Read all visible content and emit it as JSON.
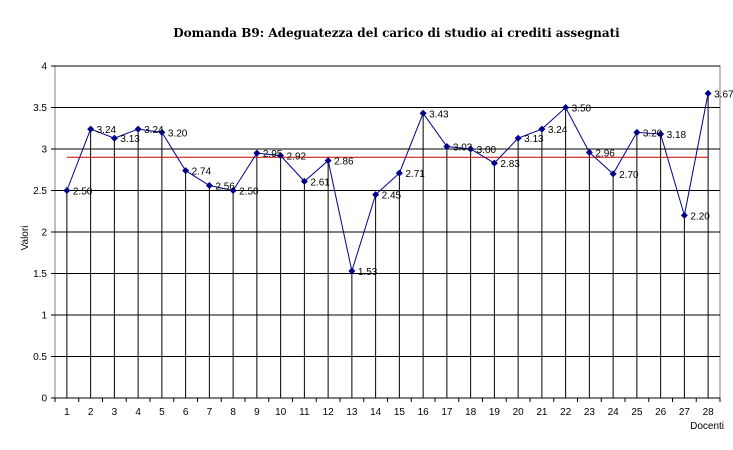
{
  "chart_data": {
    "type": "line",
    "title": "Domanda B9: Adeguatezza del carico di studio ai crediti assegnati",
    "xlabel": "Docenti",
    "ylabel": "Valori",
    "ylim": [
      0,
      4
    ],
    "yticks": [
      "0",
      "0.5",
      "1",
      "1.5",
      "2",
      "2.5",
      "3",
      "3.5",
      "4"
    ],
    "categories": [
      "1",
      "2",
      "3",
      "4",
      "5",
      "6",
      "7",
      "8",
      "9",
      "10",
      "11",
      "12",
      "13",
      "14",
      "15",
      "16",
      "17",
      "18",
      "19",
      "20",
      "21",
      "22",
      "23",
      "24",
      "25",
      "26",
      "27",
      "28"
    ],
    "values": [
      2.5,
      3.24,
      3.13,
      3.24,
      3.2,
      2.74,
      2.56,
      2.5,
      2.95,
      2.92,
      2.61,
      2.86,
      1.53,
      2.45,
      2.71,
      3.43,
      3.03,
      3.0,
      2.83,
      3.13,
      3.24,
      3.5,
      2.96,
      2.7,
      3.2,
      3.18,
      2.2,
      3.67
    ],
    "labels": [
      "2.50",
      "3.24",
      "3.13",
      "3.24",
      "3.20",
      "2.74",
      "2.56",
      "2.50",
      "2.95",
      "2.92",
      "2.61",
      "2.86",
      "1.53",
      "2.45",
      "2.71",
      "3.43",
      "3.03",
      "3.00",
      "2.83",
      "3.13",
      "3.24",
      "3.50",
      "2.96",
      "2.70",
      "3.20",
      "3.18",
      "2.20",
      "3.67"
    ],
    "reference_line": 2.9,
    "grid": true,
    "colors": {
      "series": "#00008B",
      "reference": "#CC0000",
      "grid": "#000000"
    }
  }
}
